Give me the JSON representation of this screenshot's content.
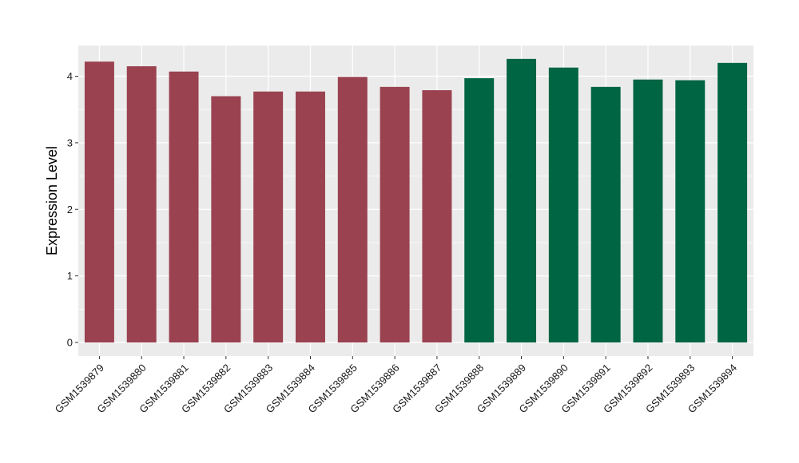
{
  "chart_data": {
    "type": "bar",
    "title": "",
    "xlabel": "",
    "ylabel": "Expression Level",
    "ylim": [
      0,
      4.4
    ],
    "yticks": [
      0,
      1,
      2,
      3,
      4
    ],
    "grid": true,
    "categories": [
      "GSM1539879",
      "GSM1539880",
      "GSM1539881",
      "GSM1539882",
      "GSM1539883",
      "GSM1539884",
      "GSM1539885",
      "GSM1539886",
      "GSM1539887",
      "GSM1539888",
      "GSM1539889",
      "GSM1539890",
      "GSM1539891",
      "GSM1539892",
      "GSM1539893",
      "GSM1539894"
    ],
    "values": [
      4.22,
      4.15,
      4.07,
      3.7,
      3.77,
      3.77,
      3.99,
      3.84,
      3.79,
      3.97,
      4.26,
      4.13,
      3.84,
      3.95,
      3.94,
      4.2
    ],
    "bar_colors": [
      "#9a4250",
      "#9a4250",
      "#9a4250",
      "#9a4250",
      "#9a4250",
      "#9a4250",
      "#9a4250",
      "#9a4250",
      "#9a4250",
      "#006542",
      "#006542",
      "#006542",
      "#006542",
      "#006542",
      "#006542",
      "#006542"
    ],
    "panel_background": "#ebebeb",
    "grid_color": "#ffffff"
  }
}
